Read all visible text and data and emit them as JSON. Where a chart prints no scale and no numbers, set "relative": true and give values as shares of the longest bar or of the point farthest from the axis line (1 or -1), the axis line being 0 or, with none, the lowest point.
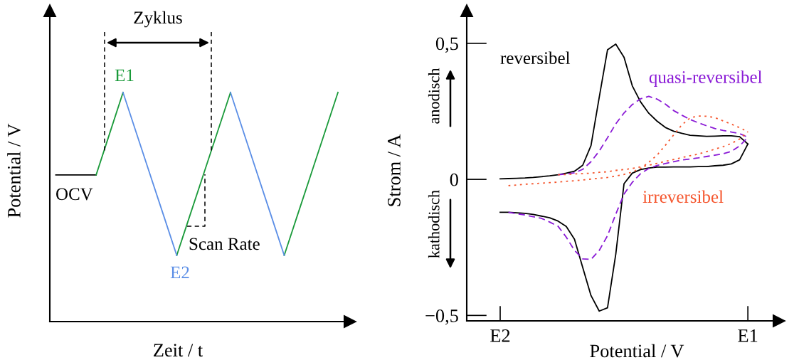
{
  "chart_data": [
    {
      "type": "line",
      "xlabel": "Zeit / t",
      "ylabel": "Potential / V",
      "relative": true,
      "categories": [
        null,
        null,
        null,
        null,
        null,
        null,
        null,
        null,
        null,
        null,
        null,
        null,
        null,
        null,
        null,
        null,
        null,
        null,
        null,
        null,
        null,
        null
      ],
      "series": [
        {
          "color": "#000000",
          "values": [
            0.64,
            0.64,
            0.64,
            0.64,
            null,
            null,
            null,
            null,
            null,
            null,
            null,
            null,
            null,
            null,
            null,
            null,
            null,
            null,
            null,
            null,
            null,
            null
          ]
        },
        {
          "color": "#1a9a3a",
          "values": [
            null,
            null,
            null,
            0.64,
            0.82,
            1.0,
            null,
            null,
            null,
            0.289,
            0.467,
            0.644,
            0.822,
            1.0,
            null,
            null,
            null,
            0.289,
            0.467,
            0.644,
            0.822,
            1.0
          ]
        },
        {
          "color": "#5b8ee6",
          "values": [
            null,
            null,
            null,
            null,
            null,
            1.0,
            0.822,
            0.644,
            0.467,
            0.289,
            null,
            null,
            null,
            1.0,
            0.822,
            0.644,
            0.467,
            0.289,
            null,
            null,
            null,
            null
          ]
        }
      ],
      "annotations": [
        "Zyklus",
        "E1",
        "E2",
        "OCV",
        "Scan Rate"
      ]
    },
    {
      "type": "line",
      "xlabel": "Potential / V",
      "ylabel": "Strom / A",
      "categories": [
        "E2",
        null,
        null,
        null,
        null,
        null,
        null,
        null,
        null,
        null,
        null,
        null,
        null,
        null,
        null,
        null,
        null,
        null,
        null,
        null,
        null,
        null,
        null,
        null,
        null,
        null,
        null,
        null,
        null,
        null,
        "E1"
      ],
      "ylim": [
        -0.52,
        0.62
      ],
      "yticks": [
        {
          "value": 0.5,
          "label": "0,5"
        },
        0,
        {
          "value": -0.5,
          "label": "−0,5"
        }
      ],
      "series": [
        {
          "name": "reversibel",
          "color": "#000000",
          "line_style": "solid",
          "values": [
            0.002,
            0.003,
            0.004,
            0.005,
            0.007,
            0.01,
            0.013,
            0.017,
            0.023,
            0.03,
            0.052,
            0.124,
            0.302,
            0.476,
            0.497,
            0.449,
            0.344,
            0.285,
            0.243,
            0.214,
            0.191,
            0.177,
            0.169,
            0.162,
            0.16,
            0.158,
            0.159,
            0.16,
            0.16,
            0.157,
            0.13
          ]
        },
        {
          "color": "#000000",
          "line_style": "solid",
          "values": [
            -0.121,
            -0.121,
            -0.123,
            -0.125,
            -0.129,
            -0.135,
            -0.141,
            -0.153,
            -0.173,
            -0.22,
            -0.324,
            -0.427,
            -0.484,
            -0.472,
            -0.275,
            -0.016,
            0.023,
            0.036,
            0.042,
            0.045,
            0.045,
            0.046,
            0.046,
            0.046,
            0.047,
            0.047,
            0.05,
            0.052,
            0.057,
            0.072,
            0.13
          ]
        },
        {
          "name": "quasi-reversibel",
          "color": "#8a1ad6",
          "line_style": "dashed",
          "values": [
            null,
            null,
            null,
            null,
            null,
            null,
            null,
            0.017,
            0.02,
            0.024,
            0.037,
            0.065,
            0.104,
            0.153,
            0.204,
            0.244,
            0.275,
            0.296,
            0.305,
            0.295,
            0.277,
            0.253,
            0.236,
            0.22,
            0.208,
            0.197,
            0.187,
            0.18,
            0.174,
            0.168,
            0.155
          ]
        },
        {
          "color": "#8a1ad6",
          "line_style": "dashed",
          "values": [
            null,
            -0.121,
            -0.126,
            -0.131,
            -0.137,
            -0.143,
            -0.157,
            -0.172,
            -0.212,
            -0.261,
            -0.292,
            -0.294,
            -0.261,
            -0.207,
            -0.128,
            -0.054,
            -0.011,
            0.021,
            0.04,
            0.051,
            0.058,
            0.065,
            0.071,
            0.075,
            0.079,
            0.084,
            0.089,
            0.094,
            0.103,
            0.123,
            0.155
          ]
        },
        {
          "name": "irreversibel",
          "color": "#f5552d",
          "line_style": "dotted",
          "values": [
            null,
            -0.023,
            -0.021,
            -0.018,
            -0.016,
            -0.014,
            -0.012,
            -0.01,
            -0.007,
            -0.005,
            -0.002,
            0.001,
            0.004,
            0.007,
            0.012,
            0.018,
            0.027,
            0.04,
            0.063,
            0.089,
            0.125,
            0.163,
            0.2,
            0.226,
            0.233,
            0.232,
            0.227,
            0.215,
            0.203,
            0.19,
            0.175
          ]
        },
        {
          "color": "#f5552d",
          "line_style": "dotted",
          "values": [
            null,
            null,
            null,
            null,
            null,
            null,
            null,
            0.017,
            0.018,
            0.02,
            0.021,
            0.023,
            0.026,
            0.028,
            0.033,
            0.036,
            0.04,
            0.046,
            0.052,
            0.059,
            0.066,
            0.073,
            0.08,
            0.087,
            0.093,
            0.102,
            0.111,
            0.12,
            0.132,
            0.148,
            0.175
          ]
        }
      ],
      "annotations": [
        "anodisch",
        "kathodisch"
      ]
    }
  ]
}
